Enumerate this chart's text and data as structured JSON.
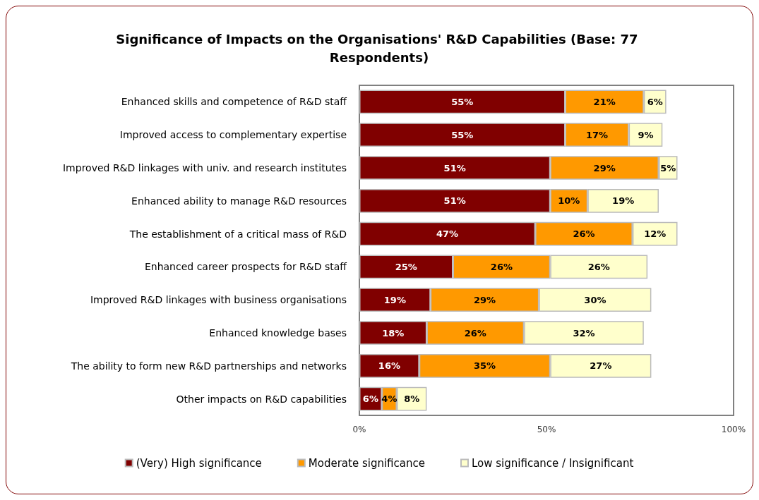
{
  "chart_data": {
    "type": "bar",
    "orientation": "horizontal",
    "stacked": true,
    "title": "Significance of Impacts on the Organisations' R&D Capabilities (Base: 77 Respondents)",
    "categories": [
      "Enhanced skills and competence of R&D staff",
      "Improved access to complementary expertise",
      "Improved R&D linkages with univ. and research institutes",
      "Enhanced ability to manage R&D resources",
      "The establishment of a critical mass of R&D",
      "Enhanced career prospects for R&D staff",
      "Improved R&D linkages with business organisations",
      "Enhanced knowledge bases",
      "The ability to form new R&D partnerships and networks",
      "Other impacts on R&D capabilities"
    ],
    "series": [
      {
        "name": "(Very) High significance",
        "color": "#800000",
        "values": [
          55,
          55,
          51,
          51,
          47,
          25,
          19,
          18,
          16,
          6
        ],
        "value_labels": [
          "55%",
          "55%",
          "51%",
          "51%",
          "47%",
          "25%",
          "19%",
          "18%",
          "16%",
          "6%"
        ]
      },
      {
        "name": "Moderate significance",
        "color": "#ff9900",
        "values": [
          21,
          17,
          29,
          10,
          26,
          26,
          29,
          26,
          35,
          4
        ],
        "value_labels": [
          "21%",
          "17%",
          "29%",
          "10%",
          "26%",
          "26%",
          "29%",
          "26%",
          "35%",
          "4%"
        ]
      },
      {
        "name": "Low significance / Insignificant",
        "color": "#ffffcc",
        "values": [
          6,
          9,
          5,
          19,
          12,
          26,
          30,
          32,
          27,
          8
        ],
        "value_labels": [
          "6%",
          "9%",
          "5%",
          "19%",
          "12%",
          "26%",
          "30%",
          "32%",
          "27%",
          "8%"
        ]
      }
    ],
    "xlim": [
      0,
      100
    ],
    "xticks": [
      {
        "value": 0,
        "label": "0%"
      },
      {
        "value": 50,
        "label": "50%"
      },
      {
        "value": 100,
        "label": "100%"
      }
    ],
    "grid": false,
    "legend": "bottom"
  }
}
